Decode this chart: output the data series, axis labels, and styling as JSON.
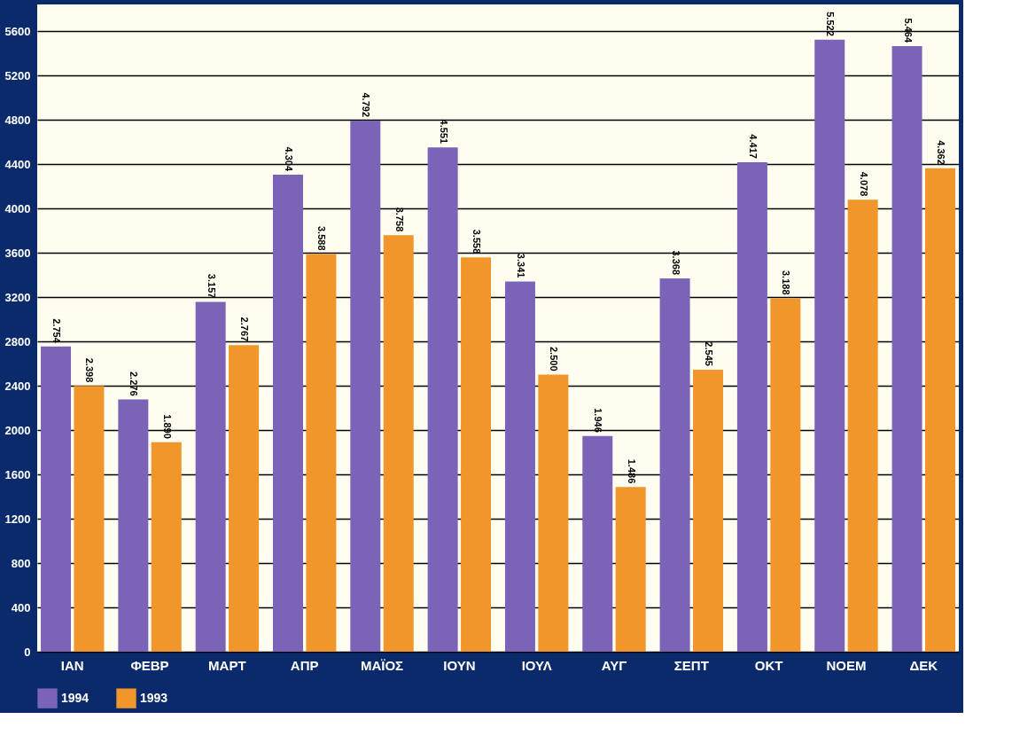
{
  "chart_data": {
    "type": "bar",
    "categories": [
      "ΙΑΝ",
      "ΦΕΒΡ",
      "ΜΑΡΤ",
      "ΑΠΡ",
      "ΜΑΪΟΣ",
      "ΙΟΥΝ",
      "ΙΟΥΛ",
      "ΑΥΓ",
      "ΣΕΠΤ",
      "ΟΚΤ",
      "ΝΟΕΜ",
      "ΔΕΚ"
    ],
    "series": [
      {
        "name": "1994",
        "color": "#7b64b8",
        "values": [
          2754,
          2276,
          3157,
          4304,
          4792,
          4551,
          3341,
          1946,
          3368,
          4417,
          5522,
          5464
        ],
        "value_labels": [
          "2.754",
          "2.276",
          "3.157",
          "4.304",
          "4.792",
          "4.551",
          "3.341",
          "1.946",
          "3.368",
          "4.417",
          "5.522",
          "5.464"
        ]
      },
      {
        "name": "1993",
        "color": "#f0962a",
        "values": [
          2398,
          1890,
          2767,
          3588,
          3758,
          3558,
          2500,
          1486,
          2545,
          3188,
          4078,
          4362
        ],
        "value_labels": [
          "2.398",
          "1.890",
          "2.767",
          "3.588",
          "3.758",
          "3.558",
          "2.500",
          "1.486",
          "2.545",
          "3.188",
          "4.078",
          "4.362"
        ]
      }
    ],
    "ylim": [
      0,
      5840
    ],
    "yticks": [
      0,
      400,
      800,
      1200,
      1600,
      2000,
      2400,
      2800,
      3200,
      3600,
      4000,
      4400,
      4800,
      5200,
      5600
    ],
    "grid": "y",
    "legend": "bottom"
  }
}
